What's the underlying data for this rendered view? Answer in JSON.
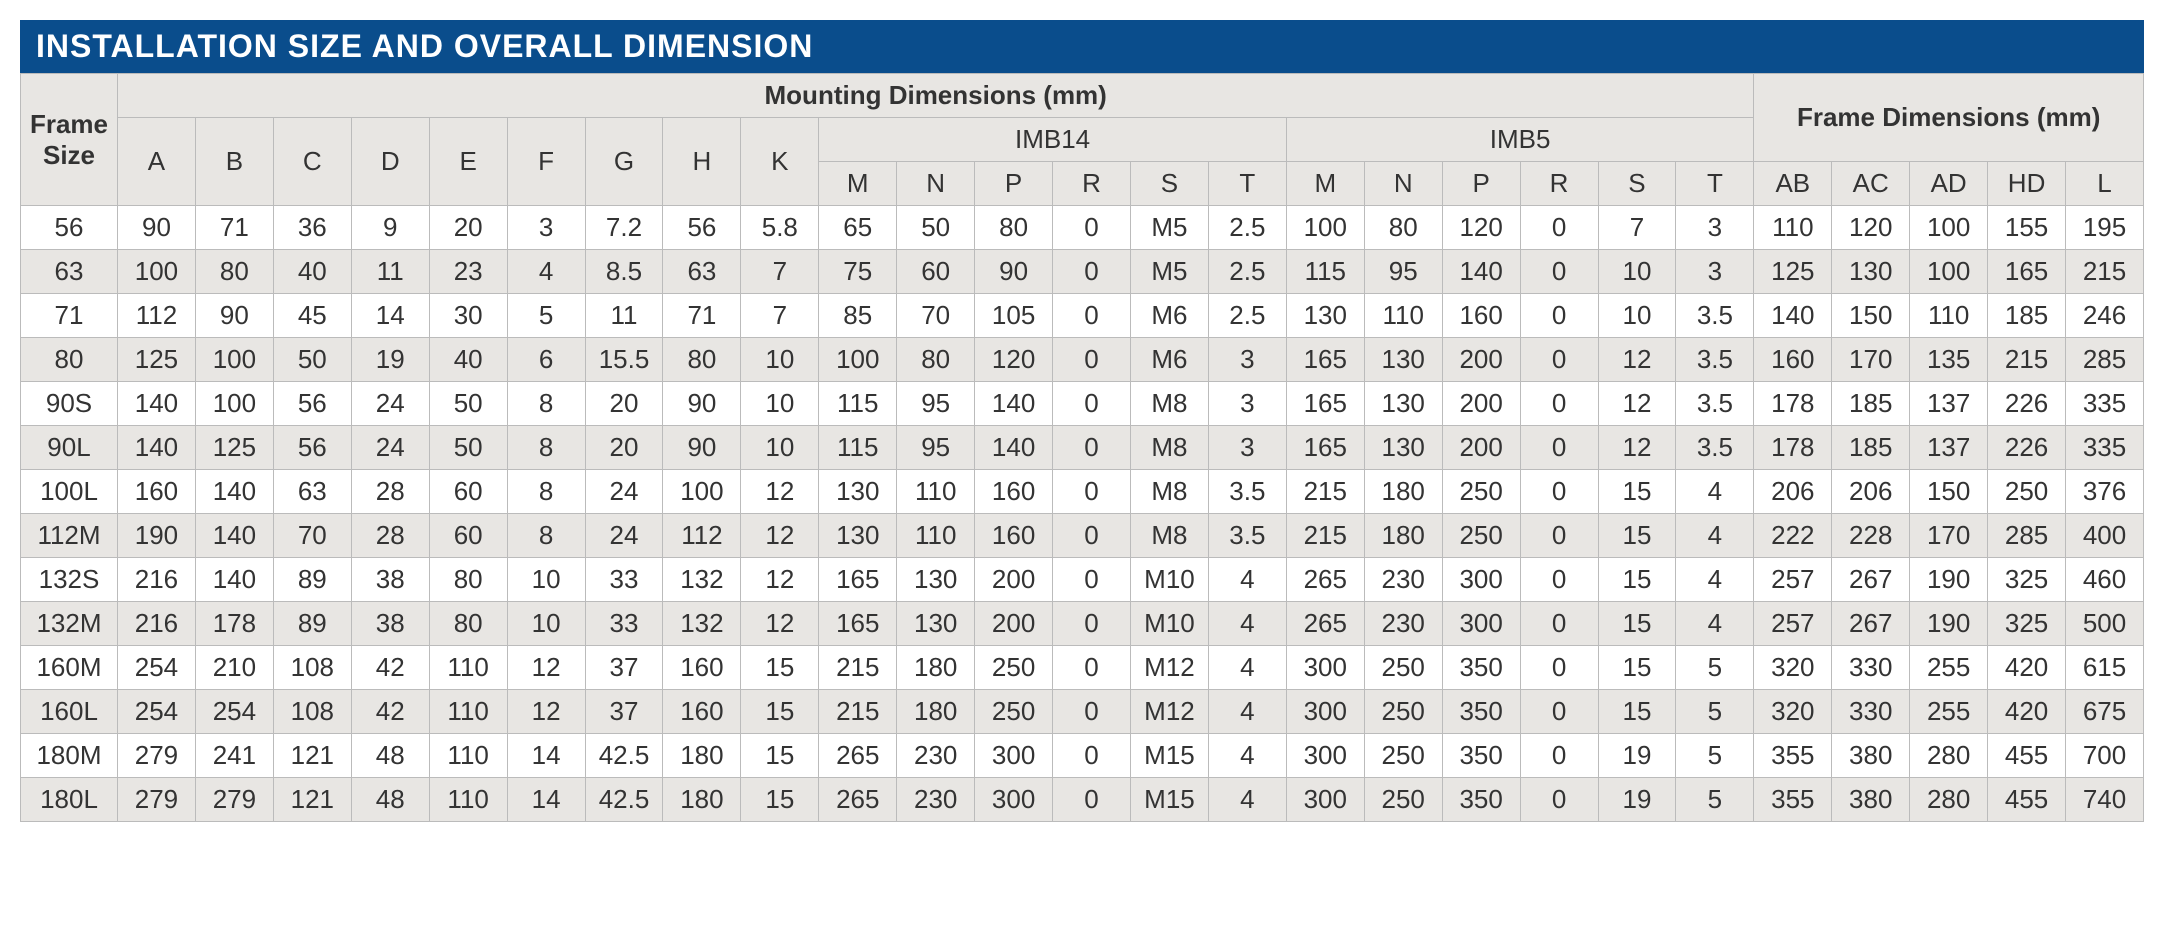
{
  "title": "INSTALLATION SIZE AND OVERALL DIMENSION",
  "colors": {
    "title_bg": "#0a4d8c",
    "title_fg": "#ffffff",
    "header_bg": "#e8e6e3",
    "row_alt_bg": "#e8e6e3",
    "row_bg": "#ffffff",
    "border": "#bbbbbb",
    "text": "#333333"
  },
  "header": {
    "frame_size": "Frame Size",
    "mounting": "Mounting Dimensions (mm)",
    "frame_dim": "Frame Dimensions (mm)",
    "imb14": "IMB14",
    "imb5": "IMB5",
    "cols": [
      "A",
      "B",
      "C",
      "D",
      "E",
      "F",
      "G",
      "H",
      "K",
      "M",
      "N",
      "P",
      "R",
      "S",
      "T",
      "M",
      "N",
      "P",
      "R",
      "S",
      "T",
      "AB",
      "AC",
      "AD",
      "HD",
      "L"
    ]
  },
  "rows": [
    {
      "fs": "56",
      "v": [
        "90",
        "71",
        "36",
        "9",
        "20",
        "3",
        "7.2",
        "56",
        "5.8",
        "65",
        "50",
        "80",
        "0",
        "M5",
        "2.5",
        "100",
        "80",
        "120",
        "0",
        "7",
        "3",
        "110",
        "120",
        "100",
        "155",
        "195"
      ]
    },
    {
      "fs": "63",
      "v": [
        "100",
        "80",
        "40",
        "11",
        "23",
        "4",
        "8.5",
        "63",
        "7",
        "75",
        "60",
        "90",
        "0",
        "M5",
        "2.5",
        "115",
        "95",
        "140",
        "0",
        "10",
        "3",
        "125",
        "130",
        "100",
        "165",
        "215"
      ]
    },
    {
      "fs": "71",
      "v": [
        "112",
        "90",
        "45",
        "14",
        "30",
        "5",
        "11",
        "71",
        "7",
        "85",
        "70",
        "105",
        "0",
        "M6",
        "2.5",
        "130",
        "110",
        "160",
        "0",
        "10",
        "3.5",
        "140",
        "150",
        "110",
        "185",
        "246"
      ]
    },
    {
      "fs": "80",
      "v": [
        "125",
        "100",
        "50",
        "19",
        "40",
        "6",
        "15.5",
        "80",
        "10",
        "100",
        "80",
        "120",
        "0",
        "M6",
        "3",
        "165",
        "130",
        "200",
        "0",
        "12",
        "3.5",
        "160",
        "170",
        "135",
        "215",
        "285"
      ]
    },
    {
      "fs": "90S",
      "v": [
        "140",
        "100",
        "56",
        "24",
        "50",
        "8",
        "20",
        "90",
        "10",
        "115",
        "95",
        "140",
        "0",
        "M8",
        "3",
        "165",
        "130",
        "200",
        "0",
        "12",
        "3.5",
        "178",
        "185",
        "137",
        "226",
        "335"
      ]
    },
    {
      "fs": "90L",
      "v": [
        "140",
        "125",
        "56",
        "24",
        "50",
        "8",
        "20",
        "90",
        "10",
        "115",
        "95",
        "140",
        "0",
        "M8",
        "3",
        "165",
        "130",
        "200",
        "0",
        "12",
        "3.5",
        "178",
        "185",
        "137",
        "226",
        "335"
      ]
    },
    {
      "fs": "100L",
      "v": [
        "160",
        "140",
        "63",
        "28",
        "60",
        "8",
        "24",
        "100",
        "12",
        "130",
        "110",
        "160",
        "0",
        "M8",
        "3.5",
        "215",
        "180",
        "250",
        "0",
        "15",
        "4",
        "206",
        "206",
        "150",
        "250",
        "376"
      ]
    },
    {
      "fs": "112M",
      "v": [
        "190",
        "140",
        "70",
        "28",
        "60",
        "8",
        "24",
        "112",
        "12",
        "130",
        "110",
        "160",
        "0",
        "M8",
        "3.5",
        "215",
        "180",
        "250",
        "0",
        "15",
        "4",
        "222",
        "228",
        "170",
        "285",
        "400"
      ]
    },
    {
      "fs": "132S",
      "v": [
        "216",
        "140",
        "89",
        "38",
        "80",
        "10",
        "33",
        "132",
        "12",
        "165",
        "130",
        "200",
        "0",
        "M10",
        "4",
        "265",
        "230",
        "300",
        "0",
        "15",
        "4",
        "257",
        "267",
        "190",
        "325",
        "460"
      ]
    },
    {
      "fs": "132M",
      "v": [
        "216",
        "178",
        "89",
        "38",
        "80",
        "10",
        "33",
        "132",
        "12",
        "165",
        "130",
        "200",
        "0",
        "M10",
        "4",
        "265",
        "230",
        "300",
        "0",
        "15",
        "4",
        "257",
        "267",
        "190",
        "325",
        "500"
      ]
    },
    {
      "fs": "160M",
      "v": [
        "254",
        "210",
        "108",
        "42",
        "110",
        "12",
        "37",
        "160",
        "15",
        "215",
        "180",
        "250",
        "0",
        "M12",
        "4",
        "300",
        "250",
        "350",
        "0",
        "15",
        "5",
        "320",
        "330",
        "255",
        "420",
        "615"
      ]
    },
    {
      "fs": "160L",
      "v": [
        "254",
        "254",
        "108",
        "42",
        "110",
        "12",
        "37",
        "160",
        "15",
        "215",
        "180",
        "250",
        "0",
        "M12",
        "4",
        "300",
        "250",
        "350",
        "0",
        "15",
        "5",
        "320",
        "330",
        "255",
        "420",
        "675"
      ]
    },
    {
      "fs": "180M",
      "v": [
        "279",
        "241",
        "121",
        "48",
        "110",
        "14",
        "42.5",
        "180",
        "15",
        "265",
        "230",
        "300",
        "0",
        "M15",
        "4",
        "300",
        "250",
        "350",
        "0",
        "19",
        "5",
        "355",
        "380",
        "280",
        "455",
        "700"
      ]
    },
    {
      "fs": "180L",
      "v": [
        "279",
        "279",
        "121",
        "48",
        "110",
        "14",
        "42.5",
        "180",
        "15",
        "265",
        "230",
        "300",
        "0",
        "M15",
        "4",
        "300",
        "250",
        "350",
        "0",
        "19",
        "5",
        "355",
        "380",
        "280",
        "455",
        "740"
      ]
    }
  ]
}
